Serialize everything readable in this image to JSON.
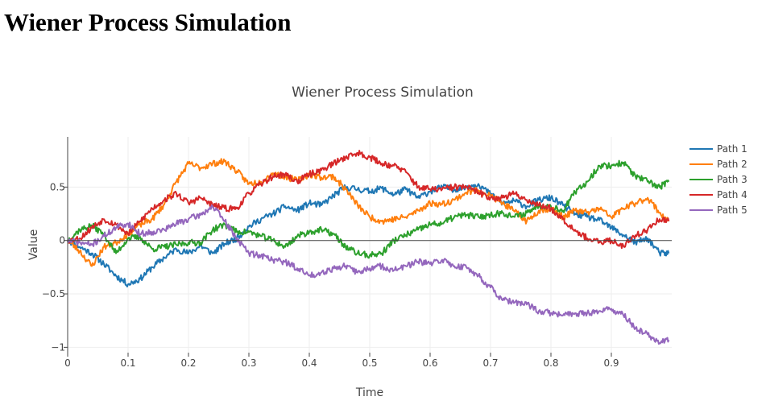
{
  "page": {
    "heading": "Wiener Process Simulation"
  },
  "chart_data": {
    "type": "line",
    "title": "Wiener Process Simulation",
    "xlabel": "Time",
    "ylabel": "Value",
    "xlim": [
      0,
      1
    ],
    "ylim": [
      -1.05,
      0.97
    ],
    "x_ticks": [
      0,
      0.1,
      0.2,
      0.3,
      0.4,
      0.5,
      0.6,
      0.7,
      0.8,
      0.9
    ],
    "x_tick_labels": [
      "0",
      "0.1",
      "0.2",
      "0.3",
      "0.4",
      "0.5",
      "0.6",
      "0.7",
      "0.8",
      "0.9"
    ],
    "y_ticks": [
      -1,
      -0.5,
      0,
      0.5
    ],
    "y_tick_labels": [
      "−1",
      "−0.5",
      "0",
      "0.5"
    ],
    "grid": true,
    "zero_line": true,
    "legend_position": "right",
    "noise_amplitude": 0.03,
    "series": [
      {
        "name": "Path 1",
        "color": "#1f77b4",
        "seed": 11,
        "x": [
          0,
          0.02,
          0.04,
          0.06,
          0.08,
          0.1,
          0.12,
          0.14,
          0.16,
          0.18,
          0.2,
          0.22,
          0.24,
          0.26,
          0.28,
          0.3,
          0.32,
          0.34,
          0.36,
          0.38,
          0.4,
          0.42,
          0.44,
          0.46,
          0.48,
          0.5,
          0.52,
          0.54,
          0.56,
          0.58,
          0.6,
          0.62,
          0.64,
          0.66,
          0.68,
          0.7,
          0.72,
          0.74,
          0.76,
          0.78,
          0.8,
          0.82,
          0.84,
          0.86,
          0.88,
          0.9,
          0.92,
          0.94,
          0.96,
          0.98,
          0.995
        ],
        "y": [
          0,
          -0.06,
          -0.12,
          -0.22,
          -0.33,
          -0.41,
          -0.36,
          -0.25,
          -0.16,
          -0.08,
          -0.12,
          -0.05,
          -0.12,
          -0.03,
          0.02,
          0.13,
          0.2,
          0.25,
          0.32,
          0.28,
          0.35,
          0.33,
          0.42,
          0.5,
          0.48,
          0.46,
          0.49,
          0.43,
          0.48,
          0.4,
          0.46,
          0.5,
          0.48,
          0.5,
          0.53,
          0.43,
          0.35,
          0.37,
          0.32,
          0.38,
          0.4,
          0.33,
          0.25,
          0.22,
          0.19,
          0.12,
          0.05,
          -0.02,
          0.02,
          -0.12,
          -0.12
        ]
      },
      {
        "name": "Path 2",
        "color": "#ff7f0e",
        "seed": 23,
        "x": [
          0,
          0.02,
          0.04,
          0.06,
          0.08,
          0.1,
          0.12,
          0.14,
          0.16,
          0.18,
          0.2,
          0.22,
          0.24,
          0.26,
          0.28,
          0.3,
          0.32,
          0.34,
          0.36,
          0.38,
          0.4,
          0.42,
          0.44,
          0.46,
          0.48,
          0.5,
          0.52,
          0.54,
          0.56,
          0.58,
          0.6,
          0.62,
          0.64,
          0.66,
          0.68,
          0.7,
          0.72,
          0.74,
          0.76,
          0.78,
          0.8,
          0.82,
          0.84,
          0.86,
          0.88,
          0.9,
          0.92,
          0.94,
          0.96,
          0.98,
          0.995
        ],
        "y": [
          0,
          -0.1,
          -0.24,
          -0.06,
          -0.02,
          0.06,
          0.15,
          0.2,
          0.34,
          0.55,
          0.72,
          0.68,
          0.72,
          0.74,
          0.65,
          0.53,
          0.55,
          0.63,
          0.6,
          0.56,
          0.62,
          0.59,
          0.6,
          0.48,
          0.33,
          0.22,
          0.18,
          0.2,
          0.22,
          0.28,
          0.35,
          0.34,
          0.38,
          0.45,
          0.47,
          0.42,
          0.35,
          0.27,
          0.18,
          0.28,
          0.3,
          0.22,
          0.28,
          0.26,
          0.3,
          0.22,
          0.3,
          0.35,
          0.4,
          0.26,
          0.18
        ]
      },
      {
        "name": "Path 3",
        "color": "#2ca02c",
        "seed": 37,
        "x": [
          0,
          0.02,
          0.04,
          0.06,
          0.08,
          0.1,
          0.12,
          0.14,
          0.16,
          0.18,
          0.2,
          0.22,
          0.24,
          0.26,
          0.28,
          0.3,
          0.32,
          0.34,
          0.36,
          0.38,
          0.4,
          0.42,
          0.44,
          0.46,
          0.48,
          0.5,
          0.52,
          0.54,
          0.56,
          0.58,
          0.6,
          0.62,
          0.64,
          0.66,
          0.68,
          0.7,
          0.72,
          0.74,
          0.76,
          0.78,
          0.8,
          0.82,
          0.84,
          0.86,
          0.88,
          0.9,
          0.92,
          0.94,
          0.96,
          0.98,
          0.995
        ],
        "y": [
          0,
          0.1,
          0.14,
          0.06,
          -0.12,
          0.02,
          0.03,
          -0.08,
          -0.06,
          -0.04,
          -0.02,
          -0.02,
          0.1,
          0.15,
          0.08,
          0.08,
          0.04,
          0.0,
          -0.06,
          0.04,
          0.08,
          0.1,
          0.06,
          -0.06,
          -0.12,
          -0.14,
          -0.12,
          0.0,
          0.05,
          0.1,
          0.15,
          0.16,
          0.22,
          0.24,
          0.22,
          0.24,
          0.26,
          0.22,
          0.26,
          0.33,
          0.32,
          0.28,
          0.45,
          0.55,
          0.7,
          0.7,
          0.73,
          0.6,
          0.55,
          0.5,
          0.55
        ]
      },
      {
        "name": "Path 4",
        "color": "#d62728",
        "seed": 53,
        "x": [
          0,
          0.02,
          0.04,
          0.06,
          0.08,
          0.1,
          0.12,
          0.14,
          0.16,
          0.18,
          0.2,
          0.22,
          0.24,
          0.26,
          0.28,
          0.3,
          0.32,
          0.34,
          0.36,
          0.38,
          0.4,
          0.42,
          0.44,
          0.46,
          0.48,
          0.5,
          0.52,
          0.54,
          0.56,
          0.58,
          0.6,
          0.62,
          0.64,
          0.66,
          0.68,
          0.7,
          0.72,
          0.74,
          0.76,
          0.78,
          0.8,
          0.82,
          0.84,
          0.86,
          0.88,
          0.9,
          0.92,
          0.94,
          0.96,
          0.98,
          0.995
        ],
        "y": [
          0,
          0.02,
          0.12,
          0.2,
          0.15,
          0.06,
          0.18,
          0.3,
          0.38,
          0.44,
          0.35,
          0.4,
          0.33,
          0.3,
          0.3,
          0.44,
          0.53,
          0.6,
          0.62,
          0.55,
          0.62,
          0.66,
          0.72,
          0.78,
          0.82,
          0.78,
          0.72,
          0.7,
          0.64,
          0.5,
          0.48,
          0.48,
          0.5,
          0.5,
          0.45,
          0.4,
          0.4,
          0.44,
          0.38,
          0.33,
          0.3,
          0.2,
          0.1,
          0.02,
          -0.02,
          0.0,
          -0.05,
          0.05,
          0.1,
          0.2,
          0.18
        ]
      },
      {
        "name": "Path 5",
        "color": "#9467bd",
        "seed": 71,
        "x": [
          0,
          0.02,
          0.04,
          0.06,
          0.08,
          0.1,
          0.12,
          0.14,
          0.16,
          0.18,
          0.2,
          0.22,
          0.24,
          0.26,
          0.28,
          0.3,
          0.32,
          0.34,
          0.36,
          0.38,
          0.4,
          0.42,
          0.44,
          0.46,
          0.48,
          0.5,
          0.52,
          0.54,
          0.56,
          0.58,
          0.6,
          0.62,
          0.64,
          0.66,
          0.68,
          0.7,
          0.72,
          0.74,
          0.76,
          0.78,
          0.8,
          0.82,
          0.84,
          0.86,
          0.88,
          0.9,
          0.92,
          0.94,
          0.96,
          0.98,
          0.995
        ],
        "y": [
          0,
          -0.02,
          -0.04,
          0.04,
          0.12,
          0.16,
          0.06,
          0.08,
          0.1,
          0.16,
          0.2,
          0.24,
          0.32,
          0.18,
          0.02,
          -0.12,
          -0.14,
          -0.18,
          -0.2,
          -0.26,
          -0.33,
          -0.3,
          -0.26,
          -0.24,
          -0.3,
          -0.26,
          -0.24,
          -0.28,
          -0.24,
          -0.2,
          -0.22,
          -0.18,
          -0.24,
          -0.25,
          -0.33,
          -0.44,
          -0.56,
          -0.58,
          -0.6,
          -0.66,
          -0.68,
          -0.7,
          -0.68,
          -0.68,
          -0.66,
          -0.64,
          -0.7,
          -0.82,
          -0.88,
          -0.96,
          -0.93
        ]
      }
    ]
  }
}
